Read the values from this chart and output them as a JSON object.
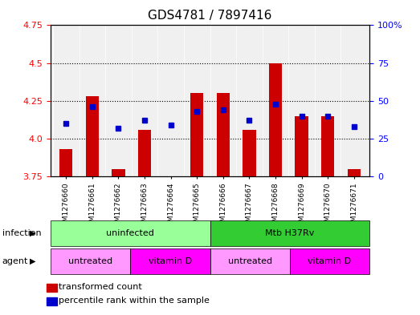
{
  "title": "GDS4781 / 7897416",
  "samples": [
    "GSM1276660",
    "GSM1276661",
    "GSM1276662",
    "GSM1276663",
    "GSM1276664",
    "GSM1276665",
    "GSM1276666",
    "GSM1276667",
    "GSM1276668",
    "GSM1276669",
    "GSM1276670",
    "GSM1276671"
  ],
  "transformed_count": [
    3.93,
    4.28,
    3.8,
    4.06,
    3.752,
    4.3,
    4.3,
    4.06,
    4.5,
    4.15,
    4.15,
    3.8
  ],
  "percentile_rank": [
    35,
    46,
    32,
    37,
    34,
    43,
    44,
    37,
    48,
    40,
    40,
    33
  ],
  "y_min": 3.75,
  "y_max": 4.75,
  "y_ticks": [
    3.75,
    4.0,
    4.25,
    4.5,
    4.75
  ],
  "y2_ticks": [
    0,
    25,
    50,
    75,
    100
  ],
  "bar_color": "#cc0000",
  "dot_color": "#0000cc",
  "infection_labels": [
    "uninfected",
    "Mtb H37Rv"
  ],
  "infection_colors": [
    "#99ff99",
    "#33cc33"
  ],
  "infection_ranges": [
    [
      0,
      6
    ],
    [
      6,
      12
    ]
  ],
  "agent_labels": [
    "untreated",
    "vitamin D",
    "untreated",
    "vitamin D"
  ],
  "agent_colors": [
    "#ff99ff",
    "#ff00ff",
    "#ff99ff",
    "#ff00ff"
  ],
  "agent_ranges": [
    [
      0,
      3
    ],
    [
      3,
      6
    ],
    [
      6,
      9
    ],
    [
      9,
      12
    ]
  ],
  "infection_row_label": "infection",
  "agent_row_label": "agent",
  "legend_items": [
    {
      "color": "#cc0000",
      "label": "transformed count"
    },
    {
      "color": "#0000cc",
      "label": "percentile rank within the sample"
    }
  ]
}
